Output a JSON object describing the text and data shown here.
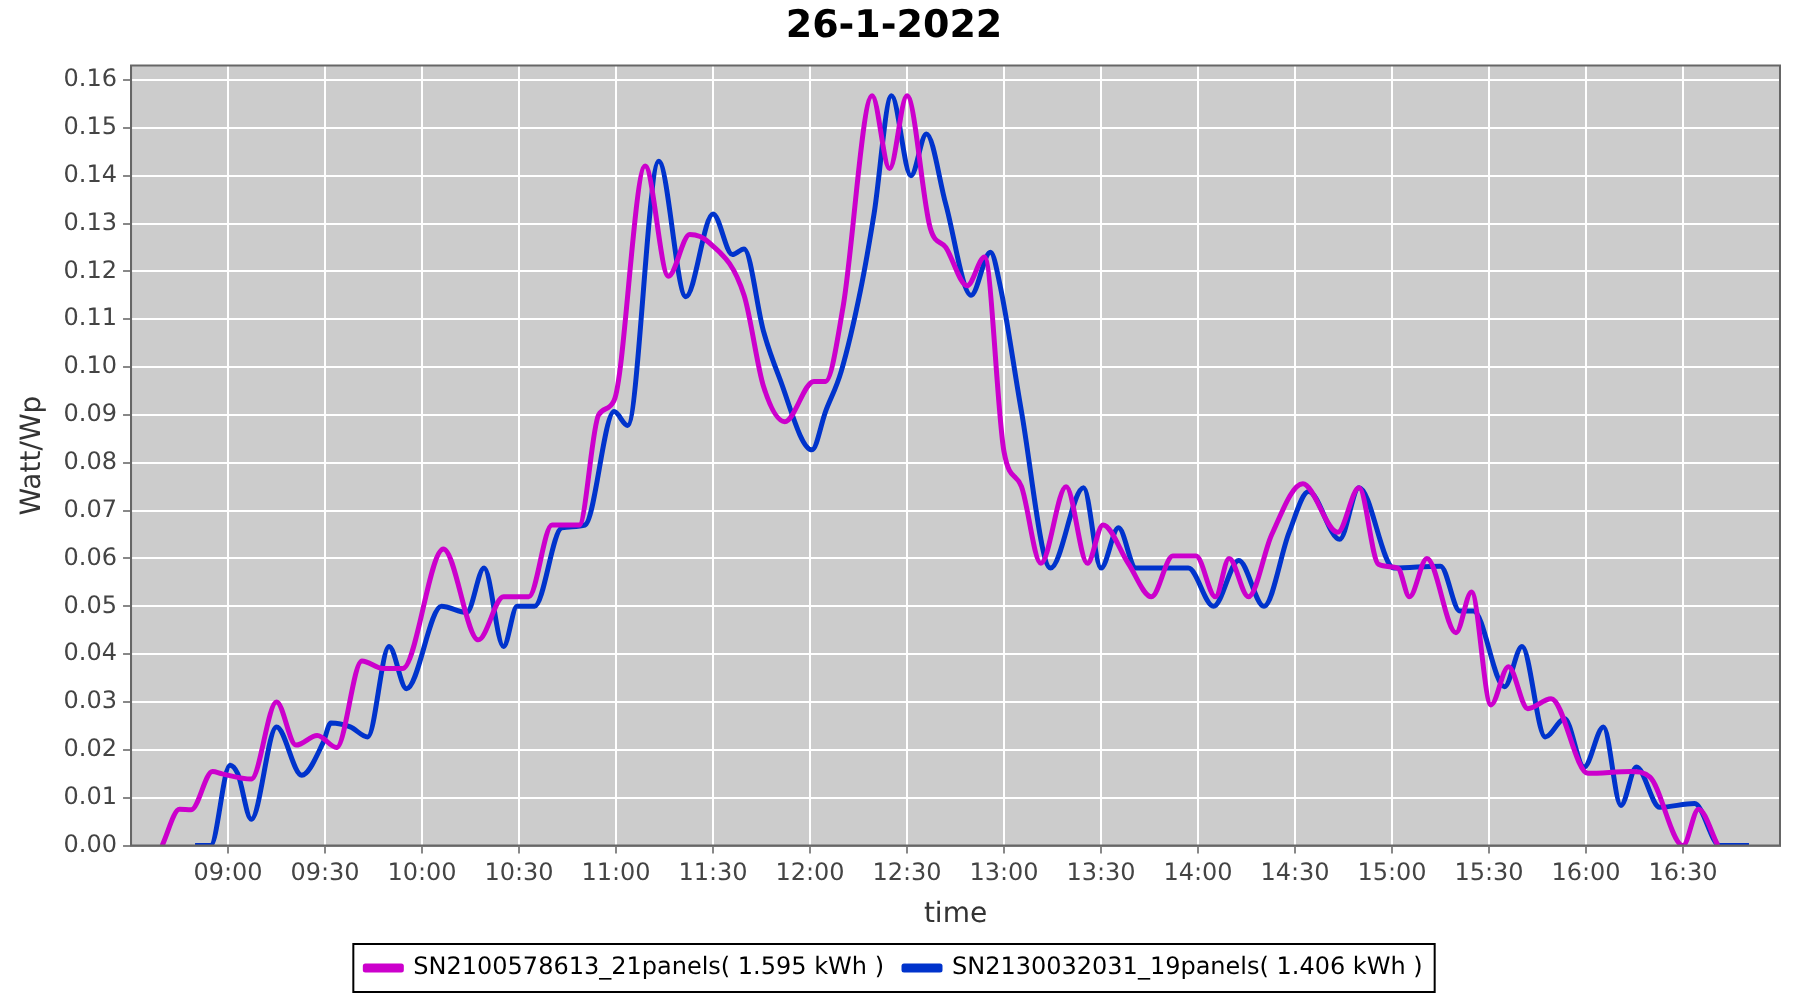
{
  "chart_data": {
    "type": "line",
    "title": "26-1-2022",
    "xlabel": "time",
    "ylabel": "Watt/Wp",
    "xlim": [
      8.5,
      17.0
    ],
    "xticks": [
      {
        "value": 9,
        "label": "09:00"
      },
      {
        "value": 9.5,
        "label": "09:30"
      },
      {
        "value": 10,
        "label": "10:00"
      },
      {
        "value": 10.5,
        "label": "10:30"
      },
      {
        "value": 11,
        "label": "11:00"
      },
      {
        "value": 11.5,
        "label": "11:30"
      },
      {
        "value": 12,
        "label": "12:00"
      },
      {
        "value": 12.5,
        "label": "12:30"
      },
      {
        "value": 13,
        "label": "13:00"
      },
      {
        "value": 13.5,
        "label": "13:30"
      },
      {
        "value": 14,
        "label": "14:00"
      },
      {
        "value": 14.5,
        "label": "14:30"
      },
      {
        "value": 15,
        "label": "15:00"
      },
      {
        "value": 15.5,
        "label": "15:30"
      },
      {
        "value": 16,
        "label": "16:00"
      },
      {
        "value": 16.5,
        "label": "16:30"
      }
    ],
    "ylim": [
      0,
      0.163
    ],
    "yticks": [
      {
        "value": 0,
        "label": "0.00"
      },
      {
        "value": 0.01,
        "label": "0.01"
      },
      {
        "value": 0.02,
        "label": "0.02"
      },
      {
        "value": 0.03,
        "label": "0.03"
      },
      {
        "value": 0.04,
        "label": "0.04"
      },
      {
        "value": 0.05,
        "label": "0.05"
      },
      {
        "value": 0.06,
        "label": "0.06"
      },
      {
        "value": 0.07,
        "label": "0.07"
      },
      {
        "value": 0.08,
        "label": "0.08"
      },
      {
        "value": 0.09,
        "label": "0.09"
      },
      {
        "value": 0.1,
        "label": "0.10"
      },
      {
        "value": 0.11,
        "label": "0.11"
      },
      {
        "value": 0.12,
        "label": "0.12"
      },
      {
        "value": 0.13,
        "label": "0.13"
      },
      {
        "value": 0.14,
        "label": "0.14"
      },
      {
        "value": 0.15,
        "label": "0.15"
      },
      {
        "value": 0.16,
        "label": "0.16"
      }
    ],
    "grid": true,
    "legend": "bottom",
    "marker": "none",
    "line_style": "solid",
    "series": [
      {
        "name": "SN2100578613_21panels( 1.595 kWh )",
        "color": "#cc00cc",
        "x": [
          8.66,
          8.75,
          8.81,
          8.92,
          8.97,
          9.12,
          9.25,
          9.35,
          9.46,
          9.56,
          9.69,
          9.8,
          9.9,
          10.11,
          10.29,
          10.42,
          10.55,
          10.67,
          10.81,
          10.91,
          10.99,
          11.15,
          11.27,
          11.38,
          11.48,
          11.66,
          11.76,
          11.87,
          12.02,
          12.08,
          12.17,
          12.32,
          12.41,
          12.5,
          12.62,
          12.7,
          12.81,
          12.9,
          13.0,
          13.09,
          13.19,
          13.32,
          13.43,
          13.51,
          13.64,
          13.76,
          13.87,
          13.99,
          14.09,
          14.16,
          14.26,
          14.38,
          14.54,
          14.72,
          14.83,
          14.93,
          15.03,
          15.09,
          15.18,
          15.33,
          15.41,
          15.51,
          15.6,
          15.7,
          15.82,
          16.01,
          16.23,
          16.33,
          16.5,
          16.58,
          16.68
        ],
        "values": [
          0,
          0.0076,
          0.0075,
          0.0155,
          0.015,
          0.0139,
          0.03,
          0.021,
          0.023,
          0.0205,
          0.0386,
          0.037,
          0.037,
          0.062,
          0.043,
          0.052,
          0.052,
          0.067,
          0.067,
          0.09,
          0.093,
          0.142,
          0.119,
          0.1277,
          0.126,
          0.115,
          0.096,
          0.0886,
          0.097,
          0.097,
          0.1125,
          0.1567,
          0.1415,
          0.1567,
          0.129,
          0.125,
          0.117,
          0.123,
          0.0823,
          0.075,
          0.059,
          0.075,
          0.059,
          0.067,
          0.059,
          0.052,
          0.0605,
          0.0605,
          0.052,
          0.06,
          0.052,
          0.065,
          0.0756,
          0.0655,
          0.0748,
          0.0588,
          0.058,
          0.052,
          0.06,
          0.0445,
          0.053,
          0.0294,
          0.0374,
          0.0286,
          0.0307,
          0.0151,
          0.0155,
          0.0143,
          0,
          0.0076,
          0
        ]
      },
      {
        "name": "SN2130032031_19panels( 1.406 kWh )",
        "color": "#0033cc",
        "x": [
          8.83,
          8.91,
          9.01,
          9.05,
          9.12,
          9.25,
          9.38,
          9.49,
          9.53,
          9.63,
          9.72,
          9.83,
          9.92,
          10.1,
          10.23,
          10.32,
          10.42,
          10.49,
          10.58,
          10.72,
          10.84,
          10.99,
          11.06,
          11.22,
          11.36,
          11.5,
          11.6,
          11.66,
          11.76,
          11.84,
          12.01,
          12.08,
          12.16,
          12.26,
          12.33,
          12.42,
          12.52,
          12.6,
          12.7,
          12.83,
          12.93,
          12.98,
          13.09,
          13.24,
          13.41,
          13.5,
          13.59,
          13.68,
          13.78,
          13.95,
          14.08,
          14.21,
          14.34,
          14.47,
          14.57,
          14.73,
          14.83,
          15.01,
          15.25,
          15.35,
          15.42,
          15.58,
          15.67,
          15.79,
          15.89,
          15.99,
          16.09,
          16.18,
          16.26,
          16.38,
          16.56,
          16.69,
          16.84
        ],
        "values": [
          0,
          0,
          0.0168,
          0.015,
          0.0055,
          0.0248,
          0.0147,
          0.0215,
          0.0256,
          0.0248,
          0.0227,
          0.0416,
          0.0328,
          0.05,
          0.0487,
          0.058,
          0.0416,
          0.05,
          0.05,
          0.0664,
          0.067,
          0.0907,
          0.0878,
          0.143,
          0.1147,
          0.132,
          0.1235,
          0.1247,
          0.1075,
          0.098,
          0.0827,
          0.0907,
          0.099,
          0.116,
          0.132,
          0.1567,
          0.14,
          0.1487,
          0.134,
          0.115,
          0.124,
          0.117,
          0.0907,
          0.058,
          0.0748,
          0.058,
          0.0664,
          0.058,
          0.058,
          0.058,
          0.05,
          0.0596,
          0.05,
          0.0655,
          0.074,
          0.064,
          0.0748,
          0.058,
          0.0584,
          0.049,
          0.049,
          0.0332,
          0.0416,
          0.0227,
          0.0265,
          0.0164,
          0.0248,
          0.0084,
          0.0164,
          0.008,
          0.0088,
          0,
          0
        ]
      }
    ]
  }
}
